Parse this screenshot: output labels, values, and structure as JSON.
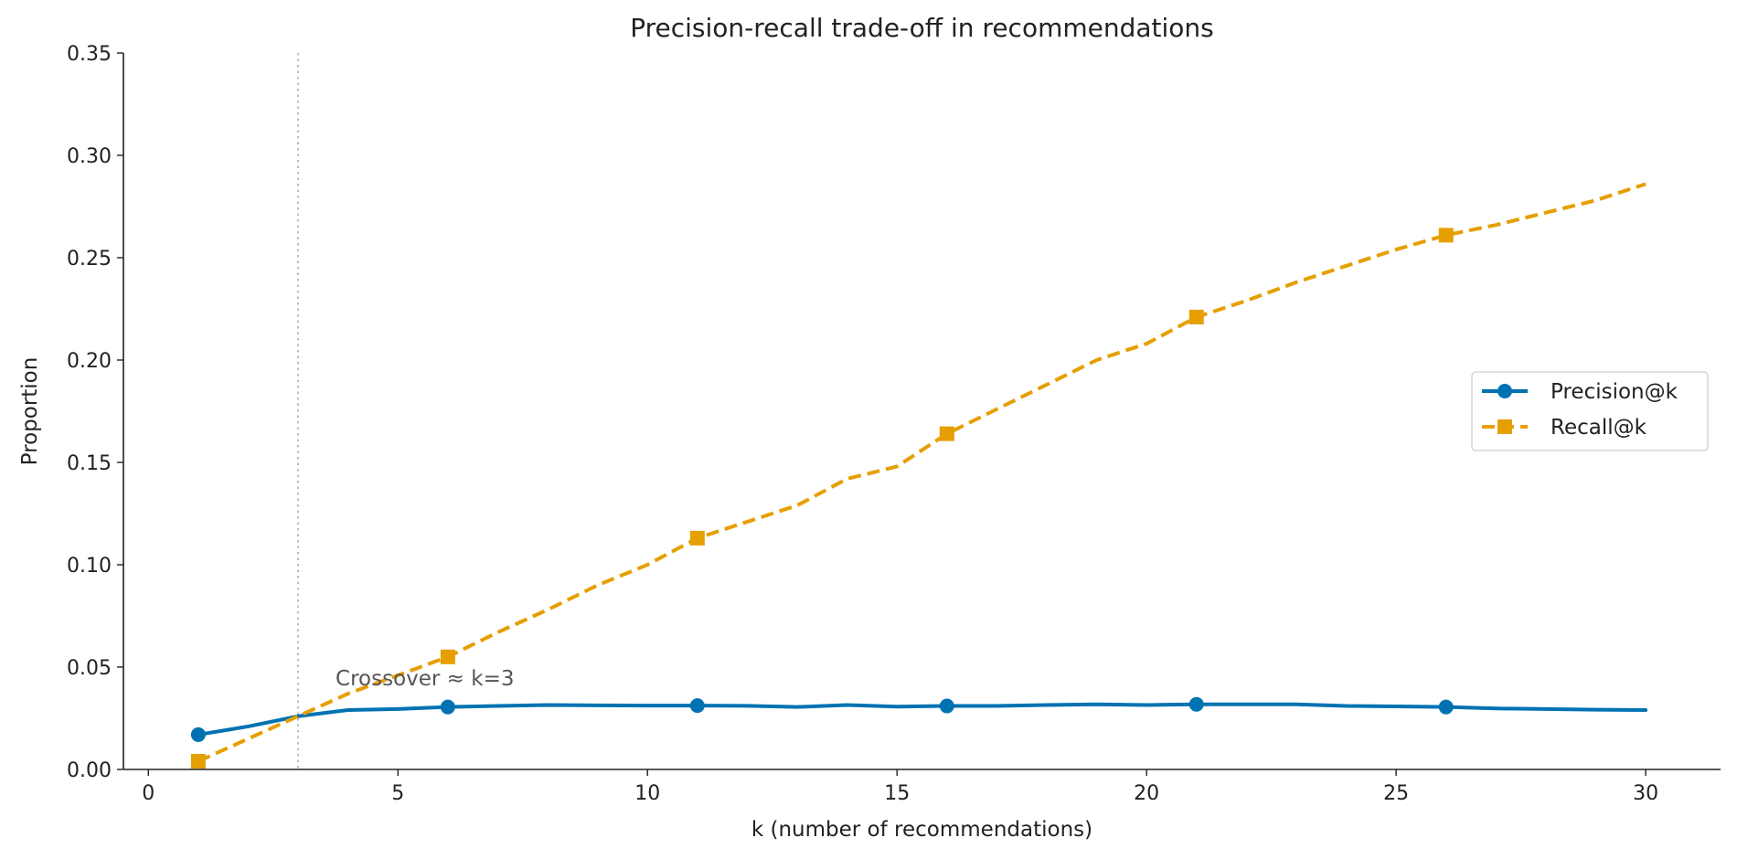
{
  "chart_data": {
    "type": "line",
    "title": "Precision-recall trade-off in recommendations",
    "xlabel": "k (number of recommendations)",
    "ylabel": "Proportion",
    "xlim": [
      -0.5,
      31.5
    ],
    "ylim": [
      0,
      0.35
    ],
    "xticks": [
      0,
      5,
      10,
      15,
      20,
      25,
      30
    ],
    "xtick_labels": [
      "0",
      "5",
      "10",
      "15",
      "20",
      "25",
      "30"
    ],
    "yticks": [
      0,
      0.05,
      0.1,
      0.15,
      0.2,
      0.25,
      0.3,
      0.35
    ],
    "ytick_labels": [
      "0.00",
      "0.05",
      "0.10",
      "0.15",
      "0.20",
      "0.25",
      "0.30",
      "0.35"
    ],
    "grid": false,
    "legend_position": "center-right",
    "x": [
      1,
      2,
      3,
      4,
      5,
      6,
      7,
      8,
      9,
      10,
      11,
      12,
      13,
      14,
      15,
      16,
      17,
      18,
      19,
      20,
      21,
      22,
      23,
      24,
      25,
      26,
      27,
      28,
      29,
      30
    ],
    "series": [
      {
        "name": "Precision@k",
        "color": "#0072B2",
        "line_style": "solid",
        "marker": "circle",
        "marker_every": 5,
        "values": [
          0.017,
          0.021,
          0.026,
          0.029,
          0.0295,
          0.0305,
          0.031,
          0.0315,
          0.0313,
          0.0312,
          0.0312,
          0.0311,
          0.0305,
          0.0315,
          0.0307,
          0.031,
          0.031,
          0.0315,
          0.0318,
          0.0315,
          0.0318,
          0.0318,
          0.0318,
          0.031,
          0.0308,
          0.0305,
          0.0298,
          0.0295,
          0.0292,
          0.029
        ]
      },
      {
        "name": "Recall@k",
        "color": "#E69F00",
        "line_style": "dashed",
        "marker": "square",
        "marker_every": 5,
        "values": [
          0.004,
          0.015,
          0.026,
          0.037,
          0.046,
          0.055,
          0.067,
          0.078,
          0.09,
          0.1,
          0.113,
          0.121,
          0.129,
          0.142,
          0.148,
          0.164,
          0.176,
          0.188,
          0.2,
          0.208,
          0.221,
          0.229,
          0.238,
          0.246,
          0.254,
          0.261,
          0.266,
          0.272,
          0.278,
          0.286
        ]
      }
    ],
    "vline": {
      "x": 3,
      "color": "#bbbbbb",
      "style": "dotted"
    },
    "annotations": [
      {
        "text": "Crossover ≈ k=3",
        "x": 3.75,
        "y": 0.041
      }
    ]
  }
}
